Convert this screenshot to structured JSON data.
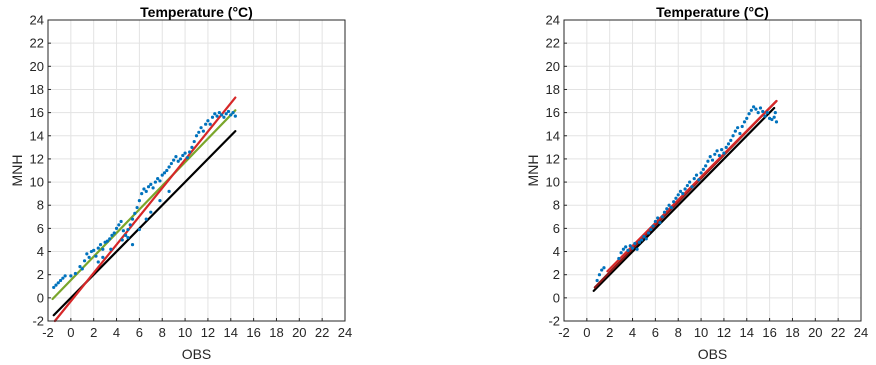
{
  "chart_data": [
    {
      "type": "scatter",
      "title": "Temperature (°C)",
      "xlabel": "OBS",
      "ylabel": "MNH",
      "xlim": [
        -2,
        24
      ],
      "ylim": [
        -2,
        24
      ],
      "xticks": [
        "-2",
        "0",
        "2",
        "4",
        "6",
        "8",
        "10",
        "12",
        "14",
        "16",
        "18",
        "20",
        "22",
        "24"
      ],
      "yticks": [
        "-2",
        "0",
        "2",
        "4",
        "6",
        "8",
        "10",
        "12",
        "14",
        "16",
        "18",
        "20",
        "22",
        "24"
      ],
      "grid": true,
      "points": [
        [
          -1.5,
          0.9
        ],
        [
          -1.3,
          1.1
        ],
        [
          -1.1,
          1.3
        ],
        [
          -0.9,
          1.5
        ],
        [
          -0.7,
          1.7
        ],
        [
          -0.5,
          1.9
        ],
        [
          0.0,
          1.9
        ],
        [
          0.4,
          2.1
        ],
        [
          0.8,
          2.7
        ],
        [
          1.0,
          2.5
        ],
        [
          1.2,
          3.2
        ],
        [
          1.4,
          3.8
        ],
        [
          1.6,
          3.5
        ],
        [
          1.8,
          4.0
        ],
        [
          2.0,
          4.1
        ],
        [
          2.2,
          3.6
        ],
        [
          2.4,
          4.3
        ],
        [
          2.6,
          4.6
        ],
        [
          2.8,
          4.2
        ],
        [
          3.0,
          4.8
        ],
        [
          3.2,
          4.9
        ],
        [
          3.4,
          5.1
        ],
        [
          3.6,
          5.4
        ],
        [
          3.8,
          5.6
        ],
        [
          4.0,
          6.0
        ],
        [
          4.2,
          6.3
        ],
        [
          4.4,
          6.6
        ],
        [
          4.6,
          5.8
        ],
        [
          4.8,
          5.4
        ],
        [
          5.0,
          5.9
        ],
        [
          5.2,
          6.3
        ],
        [
          5.4,
          6.8
        ],
        [
          5.6,
          7.3
        ],
        [
          5.8,
          7.8
        ],
        [
          6.0,
          8.4
        ],
        [
          6.2,
          9.0
        ],
        [
          6.4,
          9.4
        ],
        [
          6.6,
          9.2
        ],
        [
          6.8,
          9.6
        ],
        [
          7.0,
          9.8
        ],
        [
          7.2,
          9.5
        ],
        [
          7.4,
          10.0
        ],
        [
          7.6,
          10.3
        ],
        [
          7.8,
          10.1
        ],
        [
          8.0,
          10.6
        ],
        [
          8.2,
          10.8
        ],
        [
          8.4,
          11.0
        ],
        [
          8.6,
          11.3
        ],
        [
          8.8,
          11.6
        ],
        [
          9.0,
          11.9
        ],
        [
          9.2,
          12.2
        ],
        [
          9.4,
          11.8
        ],
        [
          9.6,
          12.0
        ],
        [
          9.8,
          12.3
        ],
        [
          10.0,
          12.5
        ],
        [
          10.2,
          12.1
        ],
        [
          10.4,
          12.6
        ],
        [
          10.6,
          13.0
        ],
        [
          10.8,
          13.5
        ],
        [
          11.0,
          14.0
        ],
        [
          11.2,
          14.3
        ],
        [
          11.4,
          14.7
        ],
        [
          11.6,
          14.4
        ],
        [
          11.8,
          15.0
        ],
        [
          12.0,
          15.3
        ],
        [
          12.2,
          15.0
        ],
        [
          12.4,
          15.6
        ],
        [
          12.6,
          15.9
        ],
        [
          12.8,
          15.7
        ],
        [
          13.0,
          16.0
        ],
        [
          13.2,
          15.8
        ],
        [
          13.4,
          15.6
        ],
        [
          13.6,
          15.9
        ],
        [
          13.8,
          16.1
        ],
        [
          14.0,
          15.8
        ],
        [
          14.2,
          16.0
        ],
        [
          14.4,
          15.7
        ],
        [
          2.4,
          3.1
        ],
        [
          2.8,
          3.5
        ],
        [
          3.5,
          4.2
        ],
        [
          4.5,
          5.0
        ],
        [
          5.0,
          5.2
        ],
        [
          5.4,
          4.6
        ],
        [
          6.0,
          5.9
        ],
        [
          6.6,
          6.8
        ],
        [
          7.0,
          7.4
        ],
        [
          7.8,
          8.4
        ],
        [
          8.6,
          9.2
        ]
      ],
      "lines": [
        {
          "color": "#000000",
          "x": [
            -1.5,
            14.4
          ],
          "y": [
            -1.5,
            14.4
          ]
        },
        {
          "color": "#7aa62b",
          "x": [
            -1.6,
            14.4
          ],
          "y": [
            -0.1,
            16.2
          ]
        },
        {
          "color": "#d62728",
          "x": [
            -1.4,
            14.4
          ],
          "y": [
            -2.0,
            17.3
          ]
        }
      ]
    },
    {
      "type": "scatter",
      "title": "Temperature (°C)",
      "xlabel": "OBS",
      "ylabel": "MNH",
      "xlim": [
        -2,
        24
      ],
      "ylim": [
        -2,
        24
      ],
      "xticks": [
        "-2",
        "0",
        "2",
        "4",
        "6",
        "8",
        "10",
        "12",
        "14",
        "16",
        "18",
        "20",
        "22",
        "24"
      ],
      "yticks": [
        "-2",
        "0",
        "2",
        "4",
        "6",
        "8",
        "10",
        "12",
        "14",
        "16",
        "18",
        "20",
        "22",
        "24"
      ],
      "grid": true,
      "points": [
        [
          0.9,
          1.5
        ],
        [
          1.1,
          2.0
        ],
        [
          1.3,
          2.4
        ],
        [
          1.5,
          2.6
        ],
        [
          2.8,
          3.4
        ],
        [
          3.0,
          3.9
        ],
        [
          3.2,
          4.2
        ],
        [
          3.4,
          4.4
        ],
        [
          3.6,
          4.1
        ],
        [
          3.8,
          4.5
        ],
        [
          4.0,
          4.3
        ],
        [
          4.2,
          4.7
        ],
        [
          4.4,
          4.2
        ],
        [
          4.6,
          4.8
        ],
        [
          4.8,
          5.0
        ],
        [
          5.0,
          5.3
        ],
        [
          5.2,
          5.1
        ],
        [
          5.4,
          5.6
        ],
        [
          5.6,
          5.9
        ],
        [
          5.8,
          6.2
        ],
        [
          6.0,
          6.6
        ],
        [
          6.2,
          6.9
        ],
        [
          6.4,
          6.5
        ],
        [
          6.6,
          7.0
        ],
        [
          6.8,
          7.4
        ],
        [
          7.0,
          7.7
        ],
        [
          7.2,
          8.0
        ],
        [
          7.4,
          7.8
        ],
        [
          7.6,
          8.3
        ],
        [
          7.8,
          8.6
        ],
        [
          8.0,
          8.9
        ],
        [
          8.2,
          9.2
        ],
        [
          8.4,
          9.0
        ],
        [
          8.6,
          9.4
        ],
        [
          8.8,
          9.7
        ],
        [
          9.0,
          10.0
        ],
        [
          9.2,
          9.6
        ],
        [
          9.4,
          10.3
        ],
        [
          9.6,
          10.6
        ],
        [
          9.8,
          10.2
        ],
        [
          10.0,
          10.8
        ],
        [
          10.2,
          11.1
        ],
        [
          10.4,
          11.4
        ],
        [
          10.6,
          11.8
        ],
        [
          10.8,
          12.2
        ],
        [
          11.0,
          11.9
        ],
        [
          11.2,
          12.4
        ],
        [
          11.4,
          12.7
        ],
        [
          11.6,
          12.3
        ],
        [
          11.8,
          12.8
        ],
        [
          12.0,
          12.5
        ],
        [
          12.2,
          13.0
        ],
        [
          12.4,
          13.3
        ],
        [
          12.6,
          13.6
        ],
        [
          12.8,
          14.0
        ],
        [
          13.0,
          14.4
        ],
        [
          13.2,
          14.7
        ],
        [
          13.4,
          14.2
        ],
        [
          13.6,
          14.8
        ],
        [
          13.8,
          15.2
        ],
        [
          14.0,
          15.5
        ],
        [
          14.2,
          15.9
        ],
        [
          14.4,
          16.2
        ],
        [
          14.6,
          16.5
        ],
        [
          14.8,
          16.3
        ],
        [
          15.0,
          16.0
        ],
        [
          15.2,
          16.4
        ],
        [
          15.4,
          16.1
        ],
        [
          15.6,
          15.7
        ],
        [
          15.8,
          16.0
        ],
        [
          16.0,
          15.5
        ],
        [
          16.2,
          15.4
        ],
        [
          16.4,
          15.6
        ],
        [
          16.6,
          15.2
        ],
        [
          16.5,
          16.0
        ]
      ],
      "lines": [
        {
          "color": "#000000",
          "x": [
            0.6,
            16.4
          ],
          "y": [
            0.6,
            16.4
          ]
        },
        {
          "color": "#8b1a1a",
          "x": [
            0.7,
            16.6
          ],
          "y": [
            0.9,
            17.0
          ]
        },
        {
          "color": "#d62728",
          "x": [
            1.8,
            16.6
          ],
          "y": [
            2.3,
            17.0
          ]
        }
      ]
    }
  ],
  "colors": {
    "points": "#0072bd",
    "grid": "#e3e3e3",
    "axis": "#262626"
  }
}
